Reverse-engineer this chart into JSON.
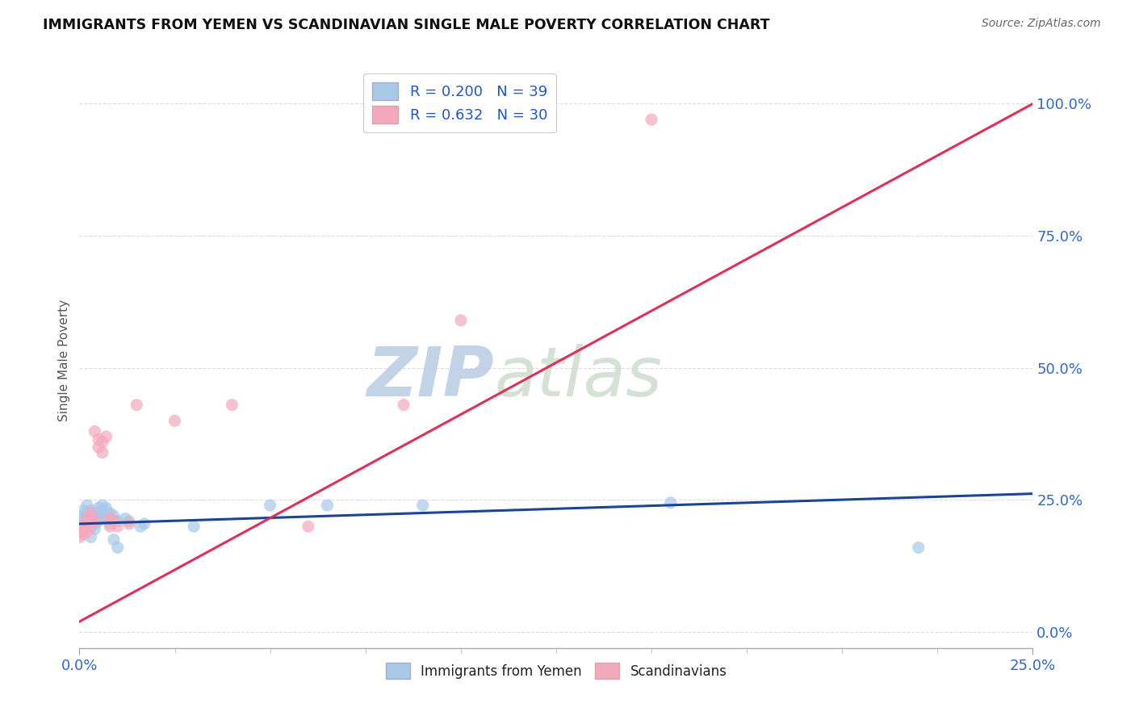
{
  "title": "IMMIGRANTS FROM YEMEN VS SCANDINAVIAN SINGLE MALE POVERTY CORRELATION CHART",
  "source": "Source: ZipAtlas.com",
  "ylabel": "Single Male Poverty",
  "yticks_labels": [
    "0.0%",
    "25.0%",
    "50.0%",
    "75.0%",
    "100.0%"
  ],
  "ytick_vals": [
    0.0,
    0.25,
    0.5,
    0.75,
    1.0
  ],
  "xticks_labels": [
    "0.0%",
    "25.0%"
  ],
  "xtick_vals": [
    0.0,
    0.25
  ],
  "xmin": 0.0,
  "xmax": 0.25,
  "ymin": -0.03,
  "ymax": 1.06,
  "legend_r1": "R = 0.200   N = 39",
  "legend_r2": "R = 0.632   N = 30",
  "blue_color": "#a8c8e8",
  "pink_color": "#f5a8bc",
  "blue_line_color": "#1a4494",
  "pink_line_color": "#e0305a",
  "blue_scatter": [
    [
      0.0,
      0.22
    ],
    [
      0.0,
      0.2
    ],
    [
      0.001,
      0.23
    ],
    [
      0.001,
      0.215
    ],
    [
      0.001,
      0.195
    ],
    [
      0.002,
      0.24
    ],
    [
      0.002,
      0.225
    ],
    [
      0.002,
      0.21
    ],
    [
      0.003,
      0.23
    ],
    [
      0.003,
      0.215
    ],
    [
      0.003,
      0.2
    ],
    [
      0.003,
      0.18
    ],
    [
      0.004,
      0.225
    ],
    [
      0.004,
      0.205
    ],
    [
      0.004,
      0.195
    ],
    [
      0.005,
      0.235
    ],
    [
      0.005,
      0.22
    ],
    [
      0.005,
      0.21
    ],
    [
      0.006,
      0.24
    ],
    [
      0.006,
      0.23
    ],
    [
      0.006,
      0.215
    ],
    [
      0.007,
      0.235
    ],
    [
      0.007,
      0.22
    ],
    [
      0.008,
      0.225
    ],
    [
      0.008,
      0.205
    ],
    [
      0.009,
      0.175
    ],
    [
      0.009,
      0.22
    ],
    [
      0.01,
      0.16
    ],
    [
      0.01,
      0.21
    ],
    [
      0.012,
      0.215
    ],
    [
      0.013,
      0.21
    ],
    [
      0.016,
      0.2
    ],
    [
      0.017,
      0.205
    ],
    [
      0.03,
      0.2
    ],
    [
      0.05,
      0.24
    ],
    [
      0.065,
      0.24
    ],
    [
      0.09,
      0.24
    ],
    [
      0.155,
      0.245
    ],
    [
      0.22,
      0.16
    ]
  ],
  "pink_scatter": [
    [
      0.0,
      0.19
    ],
    [
      0.0,
      0.18
    ],
    [
      0.001,
      0.185
    ],
    [
      0.001,
      0.195
    ],
    [
      0.001,
      0.2
    ],
    [
      0.002,
      0.19
    ],
    [
      0.002,
      0.205
    ],
    [
      0.002,
      0.215
    ],
    [
      0.003,
      0.2
    ],
    [
      0.003,
      0.215
    ],
    [
      0.003,
      0.225
    ],
    [
      0.004,
      0.21
    ],
    [
      0.004,
      0.38
    ],
    [
      0.005,
      0.35
    ],
    [
      0.005,
      0.365
    ],
    [
      0.006,
      0.34
    ],
    [
      0.006,
      0.36
    ],
    [
      0.007,
      0.37
    ],
    [
      0.008,
      0.2
    ],
    [
      0.008,
      0.215
    ],
    [
      0.009,
      0.21
    ],
    [
      0.01,
      0.2
    ],
    [
      0.013,
      0.205
    ],
    [
      0.015,
      0.43
    ],
    [
      0.025,
      0.4
    ],
    [
      0.04,
      0.43
    ],
    [
      0.06,
      0.2
    ],
    [
      0.085,
      0.43
    ],
    [
      0.1,
      0.59
    ],
    [
      0.15,
      0.97
    ]
  ],
  "blue_line_x": [
    0.0,
    0.25
  ],
  "blue_line_y": [
    0.205,
    0.262
  ],
  "pink_line_x": [
    0.0,
    0.25
  ],
  "pink_line_y": [
    0.02,
    1.0
  ],
  "watermark_zip": "ZIP",
  "watermark_atlas": "atlas",
  "watermark_color": "#c8d8ee",
  "bg_color": "#ffffff",
  "scatter_size": 120,
  "scatter_alpha": 0.7,
  "grid_color": "#dddddd",
  "grid_style": "--"
}
